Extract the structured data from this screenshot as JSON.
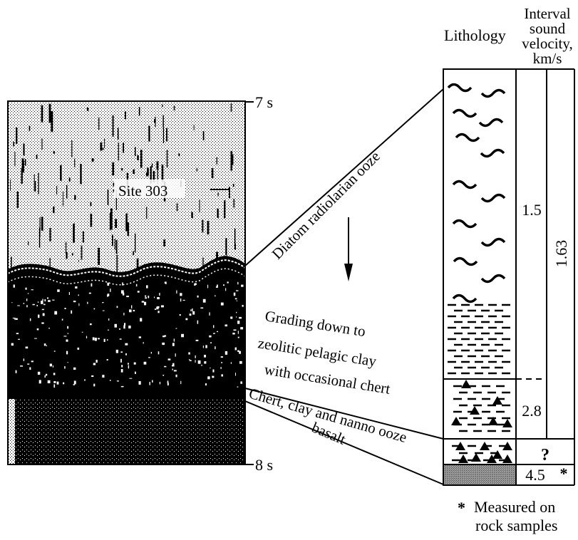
{
  "header": {
    "lithology": "Lithology",
    "velocity_line1": "Interval",
    "velocity_line2": "sound",
    "velocity_line3": "velocity,",
    "velocity_line4": "km/s"
  },
  "profile": {
    "time_top": "7 s",
    "time_bottom": "8 s",
    "site_label": "Site 303"
  },
  "annotations": {
    "ooze": "Diatom radiolarian ooze",
    "grading_line1": "Grading down to",
    "grading_line2": "zeolitic pelagic clay",
    "grading_line3": "with occasional chert",
    "chert": "Chert, clay and nanno ooze",
    "basalt": "basalt"
  },
  "velocities": {
    "layer1": "1.5",
    "layer2": "2.8",
    "layer3": "?",
    "layer4": "4.5",
    "layer4_mark": "*",
    "combined": "1.63"
  },
  "footnote": {
    "mark": "*",
    "line1": "Measured on",
    "line2": "rock samples"
  },
  "colors": {
    "ink": "#000000",
    "basalt_fill": "#8a8a8a",
    "paper": "#ffffff"
  }
}
